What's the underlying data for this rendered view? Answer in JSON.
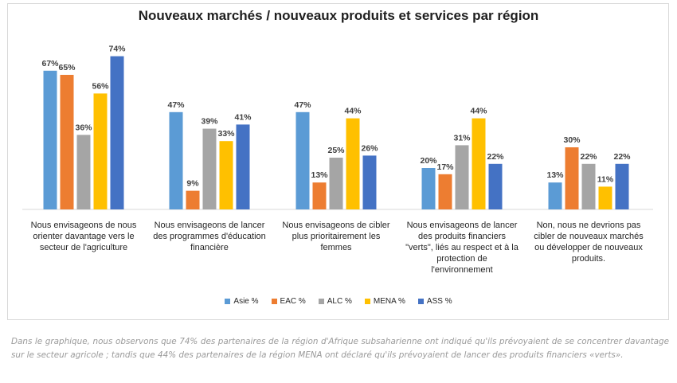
{
  "chart_data": {
    "type": "bar",
    "title": "Nouveaux marchés / nouveaux produits et services par région",
    "categories": [
      [
        "Nous envisageons de nous",
        "orienter davantage vers le",
        "secteur de l'agriculture"
      ],
      [
        "Nous envisageons de lancer",
        "des programmes d'éducation",
        "financière"
      ],
      [
        "Nous envisageons de cibler",
        "plus prioritairement les",
        "femmes"
      ],
      [
        "Nous envisageons de lancer",
        "des produits financiers",
        "\"verts\", liés au respect et à la",
        "protection de",
        "l'environnement"
      ],
      [
        "Non, nous ne devrions pas",
        "cibler de nouveaux marchés",
        "ou développer de nouveaux",
        "produits."
      ]
    ],
    "series": [
      {
        "name": "Asie %",
        "color": "#5b9bd5",
        "values": [
          67,
          47,
          47,
          20,
          13
        ],
        "labels": [
          "67%",
          "47%",
          "47%",
          "20%",
          "13%"
        ]
      },
      {
        "name": "EAC %",
        "color": "#ed7d31",
        "values": [
          65,
          9,
          13,
          17,
          30
        ],
        "labels": [
          "65%",
          "9%",
          "13%",
          "17%",
          "30%"
        ]
      },
      {
        "name": "ALC %",
        "color": "#a5a5a5",
        "values": [
          36,
          39,
          25,
          31,
          22
        ],
        "labels": [
          "36%",
          "39%",
          "25%",
          "31%",
          "22%"
        ]
      },
      {
        "name": "MENA %",
        "color": "#ffc000",
        "values": [
          56,
          33,
          44,
          44,
          11
        ],
        "labels": [
          "56%",
          "33%",
          "44%",
          "44%",
          "11%"
        ]
      },
      {
        "name": "ASS %",
        "color": "#4472c4",
        "values": [
          74,
          41,
          26,
          22,
          22
        ],
        "labels": [
          "74%",
          "41%",
          "26%",
          "22%",
          "22%"
        ]
      }
    ],
    "legend_position": "bottom",
    "grid": false
  },
  "caption": "Dans le graphique, nous observons que 74% des partenaires de la région d'Afrique subsaharienne ont indiqué qu'ils prévoyaient de se concentrer davantage sur le secteur agricole ; tandis que 44% des partenaires de la région MENA ont déclaré qu'ils prévoyaient de lancer des produits financiers «verts»."
}
